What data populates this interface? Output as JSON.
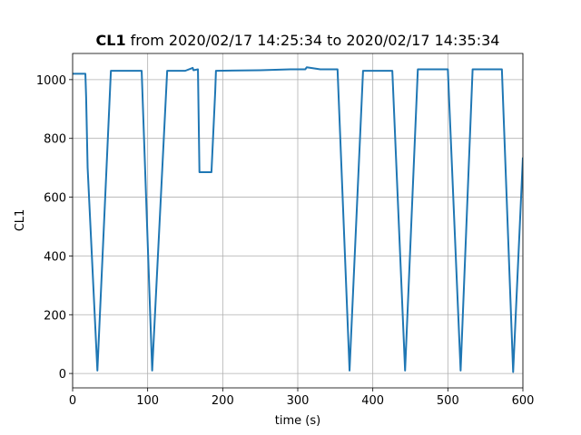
{
  "chart_data": {
    "type": "line",
    "title_bold": "CL1",
    "title": "from 2020/02/17 14:25:34 to 2020/02/17 14:35:34",
    "xlabel": "time (s)",
    "ylabel": "CL1",
    "color": "#1f77b4",
    "x": [
      0,
      17,
      18,
      20,
      33,
      51,
      92,
      106,
      126,
      150,
      160,
      161,
      167,
      169,
      185,
      190,
      191,
      250,
      290,
      310,
      312,
      330,
      353,
      369,
      387,
      426,
      443,
      460,
      500,
      517,
      533,
      572,
      587,
      600
    ],
    "values": [
      1020,
      1020,
      940,
      700,
      10,
      1030,
      1030,
      10,
      1030,
      1030,
      1040,
      1032,
      1035,
      685,
      685,
      960,
      1030,
      1032,
      1035,
      1035,
      1042,
      1035,
      1035,
      10,
      1030,
      1030,
      10,
      1035,
      1035,
      10,
      1035,
      1035,
      5,
      735
    ],
    "xlim": [
      0,
      600
    ],
    "ylim": [
      -49,
      1089
    ],
    "xticks": [
      0,
      100,
      200,
      300,
      400,
      500,
      600
    ],
    "yticks": [
      0,
      200,
      400,
      600,
      800,
      1000
    ],
    "grid": true
  }
}
